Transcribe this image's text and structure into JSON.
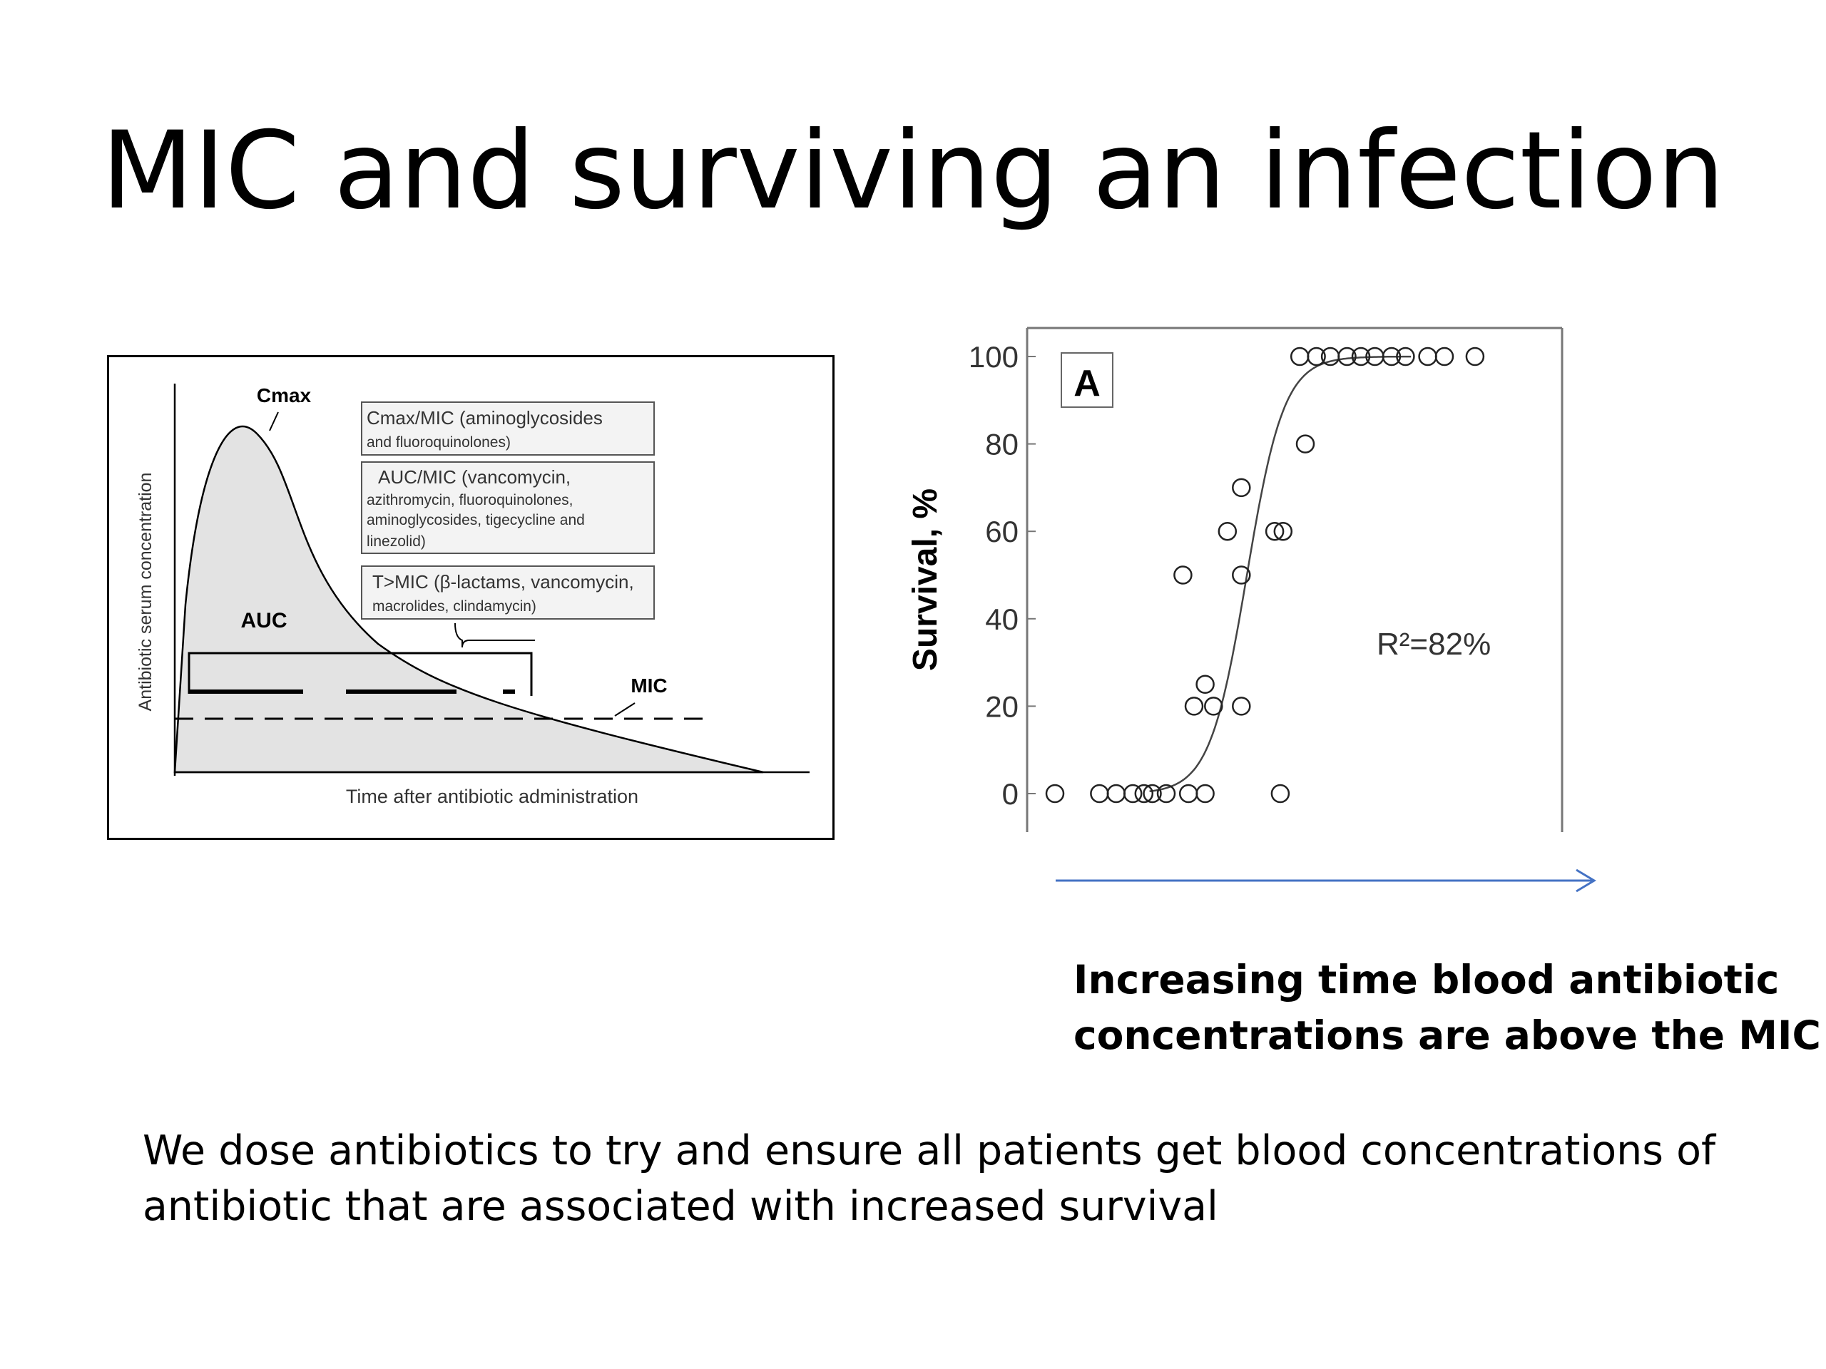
{
  "slide": {
    "title": "MIC and surviving an infection",
    "caption_lines": [
      "Increasing time blood antibiotic",
      "concentrations are above the MIC"
    ],
    "body_lines": [
      "We dose antibiotics to try and ensure all patients get blood concentrations of",
      "antibiotic that are associated with increased survival"
    ]
  },
  "diagram": {
    "ylabel": "Antibiotic serum concentration",
    "xlabel": "Time after antibiotic administration",
    "cmax_label": "Cmax",
    "auc_label": "AUC",
    "mic_label": "MIC",
    "box1_lines": [
      "Cmax/MIC (aminoglycosides",
      "and fluoroquinolones)"
    ],
    "box2_lines": [
      "AUC/MIC (vancomycin,",
      "azithromycin, fluoroquinolones,",
      "aminoglycosides, tigecycline and",
      "linezolid)"
    ],
    "box3_lines": [
      "T>MIC (β-lactams, vancomycin,",
      "macrolides, clindamycin)"
    ],
    "fill_color": "#e3e3e3"
  },
  "chart_data": {
    "type": "scatter",
    "panel_label": "A",
    "ylabel": "Survival, %",
    "xlabel": "",
    "annotation": "R²=82%",
    "ylim": [
      0,
      100
    ],
    "yticks": [
      0,
      20,
      40,
      60,
      80,
      100
    ],
    "grid": false,
    "x_axis_arrow_color": "#4472c4",
    "points": [
      {
        "x": 0.5,
        "y": 0
      },
      {
        "x": 1.3,
        "y": 0
      },
      {
        "x": 1.6,
        "y": 0
      },
      {
        "x": 1.9,
        "y": 0
      },
      {
        "x": 2.1,
        "y": 0
      },
      {
        "x": 2.25,
        "y": 0
      },
      {
        "x": 2.5,
        "y": 0
      },
      {
        "x": 2.9,
        "y": 0
      },
      {
        "x": 3.2,
        "y": 0
      },
      {
        "x": 4.55,
        "y": 0
      },
      {
        "x": 3.0,
        "y": 20
      },
      {
        "x": 3.35,
        "y": 20
      },
      {
        "x": 3.85,
        "y": 20
      },
      {
        "x": 3.2,
        "y": 25
      },
      {
        "x": 2.8,
        "y": 50
      },
      {
        "x": 3.85,
        "y": 50
      },
      {
        "x": 3.6,
        "y": 60
      },
      {
        "x": 4.45,
        "y": 60
      },
      {
        "x": 4.6,
        "y": 60
      },
      {
        "x": 3.85,
        "y": 70
      },
      {
        "x": 5.0,
        "y": 80
      },
      {
        "x": 4.9,
        "y": 100
      },
      {
        "x": 5.2,
        "y": 100
      },
      {
        "x": 5.45,
        "y": 100
      },
      {
        "x": 5.75,
        "y": 100
      },
      {
        "x": 6.0,
        "y": 100
      },
      {
        "x": 6.25,
        "y": 100
      },
      {
        "x": 6.55,
        "y": 100
      },
      {
        "x": 6.8,
        "y": 100
      },
      {
        "x": 7.2,
        "y": 100
      },
      {
        "x": 7.5,
        "y": 100
      },
      {
        "x": 8.05,
        "y": 100
      }
    ],
    "fit_curve": {
      "type": "logistic",
      "midpoint": 3.95,
      "slope": 3.0,
      "x_range": [
        2.2,
        6.9
      ]
    }
  }
}
